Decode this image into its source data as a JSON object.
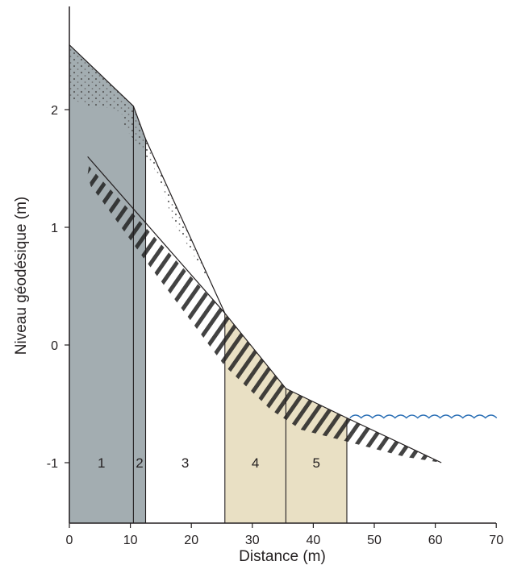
{
  "axes": {
    "xlabel": "Distance (m)",
    "ylabel": "Niveau géodésique (m)",
    "x_ticks": [
      "0",
      "10",
      "20",
      "30",
      "40",
      "50",
      "60",
      "70"
    ],
    "y_ticks": [
      "2",
      "1",
      "0",
      "-1"
    ],
    "xlim": [
      0,
      70
    ],
    "ylim": [
      -1.5,
      2.9
    ]
  },
  "zones": [
    {
      "label": "1",
      "x_start": 0,
      "x_end": 10.5,
      "color": "#a3adb1"
    },
    {
      "label": "2",
      "x_start": 10.5,
      "x_end": 12.5,
      "color": "#a3adb1"
    },
    {
      "label": "3",
      "x_start": 12.5,
      "x_end": 25.5,
      "color": "#ffffff"
    },
    {
      "label": "4",
      "x_start": 25.5,
      "x_end": 35.5,
      "color": "#e9e0c4"
    },
    {
      "label": "5",
      "x_start": 35.5,
      "x_end": 45.5,
      "color": "#e9e0c4"
    }
  ],
  "profile_surface": [
    [
      0,
      2.55
    ],
    [
      10.5,
      2.03
    ],
    [
      12.5,
      1.75
    ],
    [
      25.5,
      0.27
    ],
    [
      35.5,
      -0.37
    ],
    [
      45.5,
      -0.62
    ],
    [
      61,
      -1.0
    ]
  ],
  "layer_top": [
    [
      3,
      1.6
    ],
    [
      25.5,
      0.27
    ]
  ],
  "water_level": {
    "y": -0.62,
    "x_start": 46,
    "x_end": 70,
    "color": "#2a6fb5"
  },
  "colors": {
    "bedrock": "#a3adb1",
    "sand": "#e9e0c4",
    "hatch": "#222222",
    "line": "#231f20"
  }
}
